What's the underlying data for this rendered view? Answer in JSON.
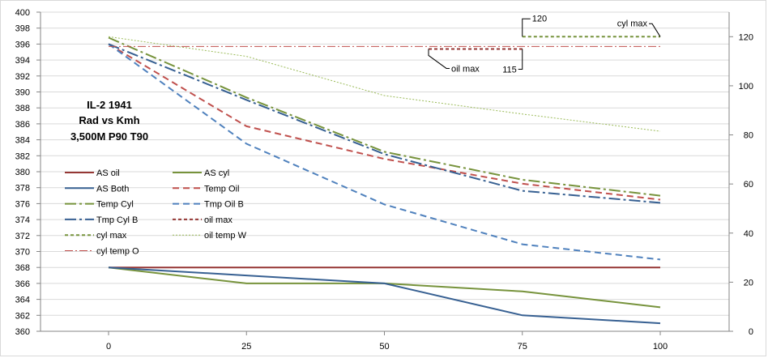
{
  "chart_data": {
    "type": "line",
    "title_lines": [
      "IL-2 1941",
      "Rad vs Kmh",
      "3,500M  P90 T90"
    ],
    "x_ticks": [
      "0",
      "25",
      "50",
      "75",
      "100"
    ],
    "x": [
      0,
      25,
      50,
      75,
      100
    ],
    "y_left": {
      "min": 360,
      "max": 400,
      "step": 2
    },
    "y_right": {
      "min": 0,
      "max": 130,
      "ticks": [
        0,
        20,
        40,
        60,
        80,
        100,
        120
      ]
    },
    "grid": "horizontal",
    "series": [
      {
        "name": "AS oil",
        "axis": "left",
        "color": "#953735",
        "dash": "solid",
        "width": 2,
        "values": [
          368,
          368,
          368,
          368,
          368
        ]
      },
      {
        "name": "AS cyl",
        "axis": "left",
        "color": "#77933c",
        "dash": "solid",
        "width": 2,
        "values": [
          368,
          366,
          366,
          365,
          363
        ]
      },
      {
        "name": "AS Both",
        "axis": "left",
        "color": "#376092",
        "dash": "solid",
        "width": 2,
        "values": [
          368,
          367,
          366,
          362,
          361
        ]
      },
      {
        "name": "Temp Oil",
        "axis": "left",
        "color": "#c0504d",
        "dash": "8,5",
        "width": 2,
        "values": [
          396,
          385.7,
          381.6,
          378.5,
          376.5
        ]
      },
      {
        "name": "Temp Cyl",
        "axis": "left",
        "color": "#77933c",
        "dash": "14,4,3,4",
        "width": 2,
        "values": [
          396.8,
          389.3,
          382.5,
          379,
          377
        ]
      },
      {
        "name": "Tmp Oil B",
        "axis": "left",
        "color": "#4f81bd",
        "dash": "8,5",
        "width": 2,
        "values": [
          396,
          383.5,
          375.9,
          370.9,
          369
        ]
      },
      {
        "name": "Tmp Cyl B",
        "axis": "left",
        "color": "#376092",
        "dash": "14,4,3,4",
        "width": 2,
        "values": [
          396,
          389,
          382.2,
          377.6,
          376.1
        ]
      },
      {
        "name": "oil max",
        "axis": "right",
        "color": "#953735",
        "dash": "4,3",
        "width": 2,
        "x": [
          58,
          75
        ],
        "values": [
          115,
          115
        ]
      },
      {
        "name": "cyl max",
        "axis": "right",
        "color": "#77933c",
        "dash": "4,3",
        "width": 2,
        "x": [
          75,
          100
        ],
        "values": [
          120,
          120
        ]
      },
      {
        "name": "oil temp W",
        "axis": "right",
        "color": "#9bbb59",
        "dash": "2,2",
        "width": 1,
        "values": [
          120,
          112,
          96,
          88.5,
          81.5
        ]
      },
      {
        "name": "cyl temp O",
        "axis": "right",
        "color": "#c0504d",
        "dash": "10,3,2,3",
        "width": 1,
        "values": [
          116,
          116,
          116,
          116,
          116
        ]
      }
    ],
    "annotations": [
      {
        "text": "120",
        "series": "cyl max"
      },
      {
        "text": "cyl max",
        "series": "cyl max"
      },
      {
        "text": "oil max",
        "series": "oil max"
      },
      {
        "text": "115",
        "series": "oil max"
      }
    ]
  }
}
